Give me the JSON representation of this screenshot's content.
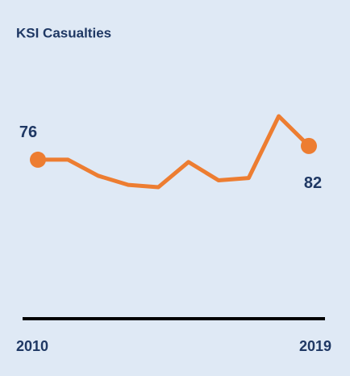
{
  "chart_data": {
    "type": "line",
    "title": "KSI Casualties",
    "categories": [
      "2010",
      null,
      null,
      null,
      null,
      null,
      null,
      null,
      null,
      "2019"
    ],
    "series": [
      {
        "color": "#ed7d31",
        "values": [
          76,
          76,
          69,
          65,
          64,
          75,
          67,
          68,
          95,
          82
        ]
      }
    ]
  }
}
